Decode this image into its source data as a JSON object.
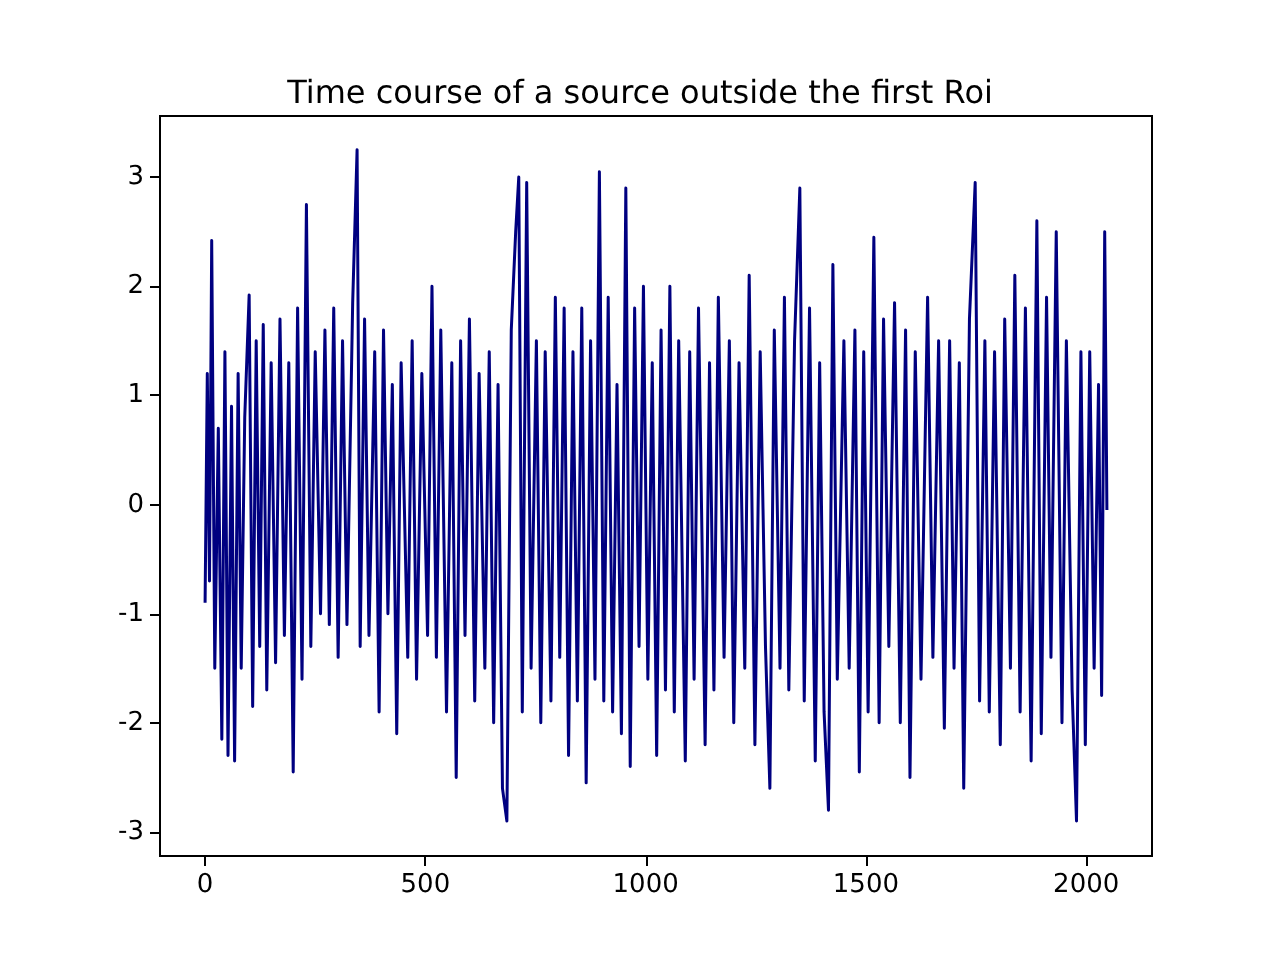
{
  "chart_data": {
    "type": "line",
    "title": "Time course of a source outside the first Roi",
    "x": [
      0,
      5,
      10,
      15,
      22,
      30,
      38,
      45,
      52,
      60,
      67,
      75,
      82,
      90,
      100,
      108,
      116,
      124,
      132,
      140,
      150,
      160,
      170,
      180,
      190,
      200,
      210,
      220,
      230,
      240,
      250,
      262,
      272,
      282,
      292,
      302,
      312,
      322,
      335,
      345,
      352,
      362,
      372,
      385,
      395,
      405,
      415,
      425,
      435,
      445,
      460,
      470,
      480,
      492,
      505,
      515,
      525,
      535,
      548,
      560,
      570,
      580,
      590,
      600,
      612,
      622,
      635,
      645,
      655,
      665,
      675,
      685,
      695,
      705,
      712,
      720,
      730,
      740,
      752,
      762,
      772,
      785,
      795,
      805,
      815,
      825,
      835,
      845,
      855,
      865,
      875,
      885,
      895,
      905,
      915,
      925,
      935,
      945,
      955,
      965,
      975,
      985,
      995,
      1005,
      1015,
      1025,
      1035,
      1045,
      1055,
      1065,
      1075,
      1090,
      1100,
      1110,
      1120,
      1135,
      1145,
      1155,
      1165,
      1178,
      1190,
      1200,
      1212,
      1225,
      1235,
      1248,
      1260,
      1272,
      1282,
      1292,
      1305,
      1315,
      1325,
      1338,
      1350,
      1360,
      1372,
      1385,
      1395,
      1405,
      1415,
      1425,
      1435,
      1450,
      1462,
      1475,
      1485,
      1495,
      1505,
      1518,
      1530,
      1540,
      1552,
      1565,
      1578,
      1590,
      1600,
      1612,
      1625,
      1640,
      1652,
      1665,
      1678,
      1690,
      1700,
      1712,
      1722,
      1735,
      1748,
      1758,
      1770,
      1780,
      1792,
      1805,
      1815,
      1828,
      1838,
      1850,
      1862,
      1875,
      1888,
      1898,
      1910,
      1920,
      1932,
      1945,
      1955,
      1968,
      1978,
      1988,
      1998,
      2008,
      2018,
      2028,
      2035,
      2042,
      2047
    ],
    "series": [
      {
        "color": "#000080",
        "values": [
          -0.9,
          1.2,
          -0.7,
          2.42,
          -1.5,
          0.7,
          -2.15,
          1.4,
          -2.3,
          0.9,
          -2.35,
          1.2,
          -1.5,
          0.8,
          1.92,
          -1.85,
          1.5,
          -1.3,
          1.65,
          -1.7,
          1.3,
          -1.45,
          1.7,
          -1.2,
          1.3,
          -2.45,
          1.8,
          -1.6,
          2.75,
          -1.3,
          1.4,
          -1.0,
          1.6,
          -1.1,
          1.8,
          -1.4,
          1.5,
          -1.1,
          1.85,
          3.25,
          -1.3,
          1.7,
          -1.2,
          1.4,
          -1.9,
          1.6,
          -1.0,
          1.1,
          -2.1,
          1.3,
          -1.4,
          1.5,
          -1.6,
          1.2,
          -1.2,
          2.0,
          -1.4,
          1.6,
          -1.9,
          1.3,
          -2.5,
          1.5,
          -1.2,
          1.7,
          -1.8,
          1.2,
          -1.5,
          1.4,
          -2.0,
          1.1,
          -2.6,
          -2.9,
          1.6,
          2.5,
          3.0,
          -1.9,
          2.95,
          -1.5,
          1.5,
          -2.0,
          1.4,
          -1.8,
          1.9,
          -1.4,
          1.8,
          -2.3,
          1.4,
          -1.8,
          1.8,
          -2.55,
          1.5,
          -1.6,
          3.05,
          -1.8,
          1.9,
          -1.9,
          1.1,
          -2.1,
          2.9,
          -2.4,
          1.8,
          -1.3,
          2.0,
          -1.6,
          1.3,
          -2.3,
          1.6,
          -1.7,
          2.0,
          -1.9,
          1.5,
          -2.35,
          1.4,
          -1.6,
          1.8,
          -2.2,
          1.3,
          -1.7,
          1.9,
          -1.4,
          1.5,
          -2.0,
          1.3,
          -1.5,
          2.1,
          -2.2,
          1.4,
          -1.3,
          -2.6,
          1.6,
          -1.5,
          1.9,
          -1.7,
          1.5,
          2.9,
          -1.8,
          1.8,
          -2.35,
          1.3,
          -1.9,
          -2.8,
          2.2,
          -1.6,
          1.5,
          -1.5,
          1.6,
          -2.45,
          1.4,
          -1.9,
          2.45,
          -2.0,
          1.7,
          -1.3,
          1.85,
          -2.0,
          1.6,
          -2.5,
          1.4,
          -1.6,
          1.9,
          -1.4,
          1.5,
          -2.05,
          1.5,
          -1.5,
          1.3,
          -2.6,
          1.7,
          2.95,
          -1.8,
          1.5,
          -1.9,
          1.4,
          -2.2,
          1.7,
          -1.5,
          2.1,
          -1.9,
          1.8,
          -2.35,
          2.6,
          -2.1,
          1.9,
          -1.4,
          2.5,
          -2.0,
          1.5,
          -1.7,
          -2.9,
          1.4,
          -2.2,
          1.4,
          -1.5,
          1.1,
          -1.75,
          2.5,
          -0.05
        ]
      }
    ],
    "xlim": [
      -102.35,
      2149.35
    ],
    "xticks": [
      0,
      500,
      1000,
      1500,
      2000
    ],
    "ylim": [
      -3.22,
      3.56
    ],
    "yticks": [
      -3,
      -2,
      -1,
      0,
      1,
      2,
      3
    ],
    "grid": false,
    "marker": "none",
    "line_style": "solid"
  }
}
